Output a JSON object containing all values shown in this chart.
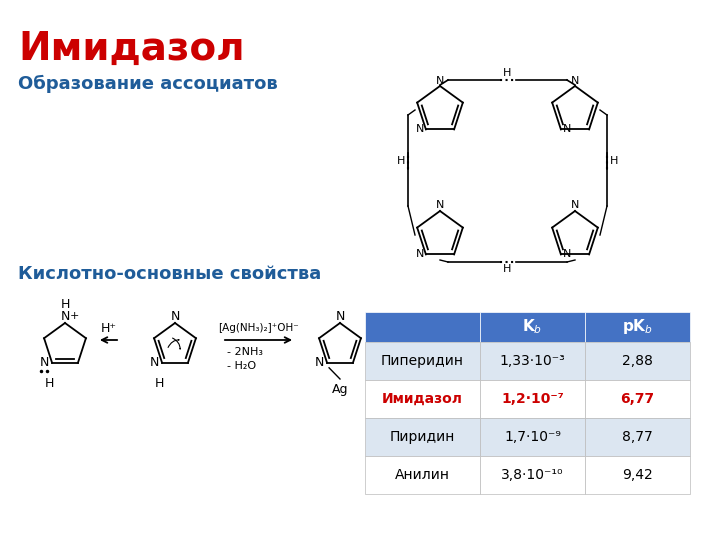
{
  "title": "Имидазол",
  "title_color": "#CC0000",
  "title_fontsize": 28,
  "subtitle1": "Образование ассоциатов",
  "subtitle1_color": "#1F5C99",
  "subtitle1_fontsize": 13,
  "subtitle2": "Кислотно-основные свойства",
  "subtitle2_color": "#1F5C99",
  "subtitle2_fontsize": 13,
  "table_header_bg": "#4472C4",
  "table_header_color": "#FFFFFF",
  "table_row_bg_odd": "#DCE6F1",
  "table_row_bg_even": "#FFFFFF",
  "table_highlight_color": "#CC0000",
  "table_text_color": "#000000",
  "bg_color": "#FFFFFF"
}
